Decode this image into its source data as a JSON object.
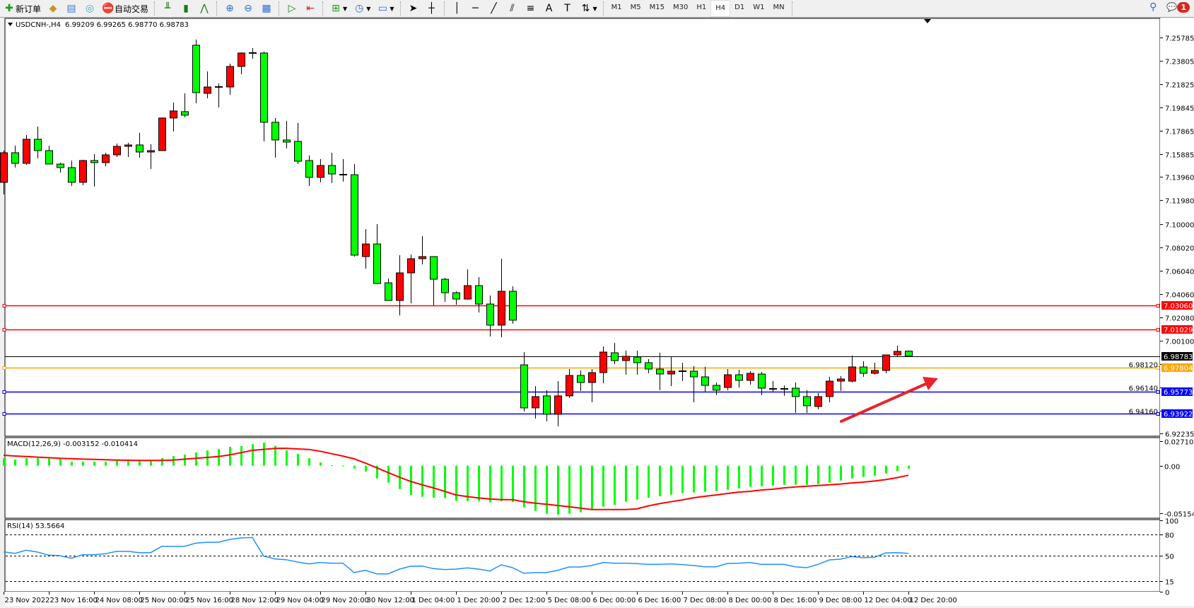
{
  "toolbar": {
    "new_order": "新订单",
    "auto_trading": "自动交易",
    "timeframes": [
      "M1",
      "M5",
      "M15",
      "M30",
      "H1",
      "H4",
      "D1",
      "W1",
      "MN"
    ],
    "active_timeframe": "H4",
    "notification_count": "1",
    "icons": [
      "new-order-icon",
      "market-watch-icon",
      "data-window-icon",
      "navigator-icon",
      "auto-trading-icon",
      "bar-chart-icon",
      "candlestick-icon",
      "line-chart-icon",
      "zoom-in-icon",
      "zoom-out-icon",
      "tile-windows-icon",
      "autoscroll-icon",
      "chart-shift-icon",
      "new-chart-icon",
      "periods-icon",
      "templates-icon",
      "cursor-icon",
      "crosshair-icon",
      "vertical-line-icon",
      "horizontal-line-icon",
      "trendline-icon",
      "equidistant-channel-icon",
      "fibonacci-icon",
      "text-icon",
      "text-label-icon",
      "arrows-icon",
      "search-icon",
      "chat-icon"
    ]
  },
  "chart": {
    "symbol_header": "USDCNH-,H4",
    "ohlc_header": "6.99209 6.99265 6.98770 6.98783",
    "colors": {
      "bull": "#ff0000",
      "bear": "#00ff00",
      "background": "#ffffff",
      "wick": "#000000"
    },
    "price_ticks": [
      "7.25785",
      "7.23805",
      "7.21825",
      "7.19845",
      "7.17865",
      "7.15885",
      "7.13960",
      "7.11980",
      "7.10000",
      "7.08020",
      "7.06040",
      "7.04060",
      "7.02080",
      "7.00100",
      "6.98120",
      "6.96140",
      "6.94160",
      "6.92235"
    ],
    "price_range": [
      6.92235,
      7.25785
    ],
    "hlines": [
      {
        "price": "7.03060",
        "color": "#ff0000",
        "text_color": "#ffffff"
      },
      {
        "price": "7.01029",
        "color": "#ff0000",
        "text_color": "#ffffff"
      },
      {
        "price": "6.98783",
        "color": "#000000",
        "text_color": "#ffffff",
        "current": true
      },
      {
        "price": "6.97804",
        "color": "#ffa500",
        "text_color": "#ffffff"
      },
      {
        "price": "6.95773",
        "color": "#0000ff",
        "text_color": "#ffffff"
      },
      {
        "price": "6.93922",
        "color": "#0000ff",
        "text_color": "#ffffff"
      }
    ],
    "candles": [
      [
        7.1351,
        7.162,
        7.1249,
        7.1602
      ],
      [
        7.1602,
        7.1662,
        7.1476,
        7.1512
      ],
      [
        7.1512,
        7.1752,
        7.15,
        7.1716
      ],
      [
        7.1716,
        7.1824,
        7.1554,
        7.162
      ],
      [
        7.162,
        7.1662,
        7.1506,
        7.1506
      ],
      [
        7.1506,
        7.1518,
        7.1434,
        7.1476
      ],
      [
        7.1476,
        7.1536,
        7.1321,
        7.1351
      ],
      [
        7.1351,
        7.1542,
        7.1327,
        7.1536
      ],
      [
        7.1536,
        7.159,
        7.1315,
        7.1518
      ],
      [
        7.1518,
        7.1602,
        7.1488,
        7.1584
      ],
      [
        7.1584,
        7.168,
        7.1566,
        7.1656
      ],
      [
        7.1656,
        7.1686,
        7.1566,
        7.1668
      ],
      [
        7.1668,
        7.177,
        7.156,
        7.1608
      ],
      [
        7.1608,
        7.1674,
        7.1464,
        7.162
      ],
      [
        7.162,
        7.1902,
        7.162,
        7.1896
      ],
      [
        7.1896,
        7.2027,
        7.1782,
        7.1956
      ],
      [
        7.195,
        7.2105,
        7.1902,
        7.192
      ],
      [
        7.2513,
        7.2561,
        7.2021,
        7.2111
      ],
      [
        7.2105,
        7.2291,
        7.2063,
        7.2159
      ],
      [
        7.2159,
        7.2189,
        7.1986,
        7.2159
      ],
      [
        7.2159,
        7.2357,
        7.2093,
        7.2333
      ],
      [
        7.2333,
        7.2453,
        7.2267,
        7.2447
      ],
      [
        7.2447,
        7.2489,
        7.2399,
        7.2447
      ],
      [
        7.2447,
        7.2459,
        7.1698,
        7.186
      ],
      [
        7.186,
        7.1896,
        7.156,
        7.171
      ],
      [
        7.171,
        7.1872,
        7.1638,
        7.1692
      ],
      [
        7.1698,
        7.1854,
        7.1506,
        7.153
      ],
      [
        7.1536,
        7.1578,
        7.1321,
        7.1393
      ],
      [
        7.1393,
        7.1548,
        7.1351,
        7.1494
      ],
      [
        7.1494,
        7.1602,
        7.1345,
        7.1422
      ],
      [
        7.1416,
        7.1548,
        7.1357,
        7.1416
      ],
      [
        7.1416,
        7.1506,
        7.0722,
        7.0734
      ],
      [
        7.0722,
        7.0955,
        7.062,
        7.0829
      ],
      [
        7.0829,
        7.0997,
        7.0488,
        7.0494
      ],
      [
        7.05,
        7.0536,
        7.035,
        7.035
      ],
      [
        7.035,
        7.0734,
        7.0224,
        7.0584
      ],
      [
        7.0584,
        7.074,
        7.0326,
        7.0704
      ],
      [
        7.0704,
        7.0895,
        7.0656,
        7.0722
      ],
      [
        7.0722,
        7.0722,
        7.0308,
        7.053
      ],
      [
        7.053,
        7.0542,
        7.0338,
        7.0416
      ],
      [
        7.0416,
        7.0428,
        7.0314,
        7.0362
      ],
      [
        7.0362,
        7.0614,
        7.0356,
        7.0476
      ],
      [
        7.0476,
        7.0548,
        7.0248,
        7.032
      ],
      [
        7.032,
        7.0392,
        7.0045,
        7.0141
      ],
      [
        7.0141,
        7.0704,
        7.0039,
        7.0428
      ],
      [
        7.0428,
        7.047,
        7.0153,
        7.0183
      ],
      [
        6.9805,
        6.9913,
        6.941,
        6.944
      ],
      [
        6.944,
        6.9625,
        6.935,
        6.9536
      ],
      [
        6.9542,
        6.959,
        6.9326,
        6.9386
      ],
      [
        6.9386,
        6.9667,
        6.9284,
        6.9542
      ],
      [
        6.9542,
        6.9769,
        6.9524,
        6.9715
      ],
      [
        6.9715,
        6.9757,
        6.9584,
        6.9655
      ],
      [
        6.9655,
        6.9769,
        6.9488,
        6.9739
      ],
      [
        6.9739,
        6.9961,
        6.9649,
        6.9913
      ],
      [
        6.9907,
        6.9991,
        6.9811,
        6.9841
      ],
      [
        6.9841,
        6.9925,
        6.9721,
        6.9877
      ],
      [
        6.9871,
        6.9925,
        6.9721,
        6.9823
      ],
      [
        6.9823,
        6.9853,
        6.9733,
        6.9769
      ],
      [
        6.9769,
        6.9907,
        6.959,
        6.9727
      ],
      [
        6.9727,
        6.9877,
        6.9625,
        6.9751
      ],
      [
        6.9751,
        6.9823,
        6.9667,
        6.9751
      ],
      [
        6.9751,
        6.9793,
        6.9488,
        6.9703
      ],
      [
        6.9703,
        6.9787,
        6.9578,
        6.9631
      ],
      [
        6.9631,
        6.9655,
        6.9548,
        6.959
      ],
      [
        6.9613,
        6.9769,
        6.959,
        6.9721
      ],
      [
        6.9721,
        6.9763,
        6.9613,
        6.9673
      ],
      [
        6.9673,
        6.9751,
        6.9637,
        6.9733
      ],
      [
        6.9727,
        6.9745,
        6.9548,
        6.9607
      ],
      [
        6.9601,
        6.9667,
        6.9578,
        6.9601
      ],
      [
        6.9601,
        6.9631,
        6.9542,
        6.9601
      ],
      [
        6.9607,
        6.9655,
        6.9398,
        6.9536
      ],
      [
        6.9536,
        6.959,
        6.9398,
        6.9458
      ],
      [
        6.9452,
        6.9566,
        6.9428,
        6.9536
      ],
      [
        6.9536,
        6.9703,
        6.9488,
        6.9667
      ],
      [
        6.9667,
        6.9709,
        6.9584,
        6.9685
      ],
      [
        6.9667,
        6.9883,
        6.9655,
        6.9787
      ],
      [
        6.9787,
        6.9835,
        6.9703,
        6.9733
      ],
      [
        6.9733,
        6.9823,
        6.9721,
        6.9757
      ],
      [
        6.9757,
        6.9889,
        6.9733,
        6.9889
      ],
      [
        6.9889,
        6.9967,
        6.9877,
        6.9919
      ],
      [
        6.99209,
        6.99265,
        6.9877,
        6.98783
      ]
    ],
    "time_labels": [
      {
        "bar": 0,
        "text": "23 Nov 2022"
      },
      {
        "bar": 4,
        "text": "23 Nov 16:00"
      },
      {
        "bar": 8,
        "text": "24 Nov 08:00"
      },
      {
        "bar": 12,
        "text": "25 Nov 00:00"
      },
      {
        "bar": 16,
        "text": "25 Nov 16:00"
      },
      {
        "bar": 20,
        "text": "28 Nov 12:00"
      },
      {
        "bar": 24,
        "text": "29 Nov 04:00"
      },
      {
        "bar": 28,
        "text": "29 Nov 20:00"
      },
      {
        "bar": 32,
        "text": "30 Nov 12:00"
      },
      {
        "bar": 36,
        "text": "1 Dec 04:00"
      },
      {
        "bar": 40,
        "text": "1 Dec 20:00"
      },
      {
        "bar": 44,
        "text": "2 Dec 12:00"
      },
      {
        "bar": 48,
        "text": "5 Dec 08:00"
      },
      {
        "bar": 52,
        "text": "6 Dec 00:00"
      },
      {
        "bar": 56,
        "text": "6 Dec 16:00"
      },
      {
        "bar": 60,
        "text": "7 Dec 08:00"
      },
      {
        "bar": 64,
        "text": "8 Dec 00:00"
      },
      {
        "bar": 68,
        "text": "8 Dec 16:00"
      },
      {
        "bar": 72,
        "text": "9 Dec 08:00"
      },
      {
        "bar": 76,
        "text": "12 Dec 04:00"
      },
      {
        "bar": 80,
        "text": "12 Dec 20:00"
      }
    ]
  },
  "macd": {
    "label": "MACD(12,26,9) -0.003152 -0.010414",
    "axis_ticks": [
      "0.027103",
      "0.00",
      "-0.051546"
    ],
    "range": [
      -0.051546,
      0.027103
    ],
    "hist_color": "#00ff00",
    "signal_color": "#ff0000",
    "hist": [
      0.008,
      0.0067,
      0.0082,
      0.0082,
      0.0077,
      0.0072,
      0.0044,
      0.0044,
      0.0044,
      0.0044,
      0.0054,
      0.0054,
      0.0049,
      0.0049,
      0.0082,
      0.0105,
      0.0121,
      0.0144,
      0.0167,
      0.0182,
      0.0206,
      0.0213,
      0.0234,
      0.0252,
      0.0216,
      0.0167,
      0.0129,
      0.0082,
      0.0036,
      0.0005,
      -0.0003,
      -0.0031,
      -0.0064,
      -0.0139,
      -0.0185,
      -0.0254,
      -0.0319,
      -0.0339,
      -0.035,
      -0.0352,
      -0.0383,
      -0.0386,
      -0.0386,
      -0.0401,
      -0.0386,
      -0.0396,
      -0.0455,
      -0.0493,
      -0.0524,
      -0.0535,
      -0.0524,
      -0.0509,
      -0.0483,
      -0.0447,
      -0.0427,
      -0.0393,
      -0.037,
      -0.035,
      -0.0332,
      -0.0316,
      -0.0301,
      -0.0293,
      -0.0285,
      -0.0278,
      -0.0262,
      -0.0247,
      -0.0231,
      -0.0224,
      -0.0216,
      -0.0208,
      -0.0208,
      -0.0208,
      -0.02,
      -0.0185,
      -0.0162,
      -0.0139,
      -0.0123,
      -0.0108,
      -0.0085,
      -0.0062,
      -0.003152
    ],
    "signal": [
      0.0113,
      0.0106,
      0.01,
      0.0093,
      0.0087,
      0.008,
      0.0076,
      0.0072,
      0.0069,
      0.0065,
      0.0062,
      0.0059,
      0.0058,
      0.0057,
      0.0057,
      0.0062,
      0.0071,
      0.008,
      0.009,
      0.01,
      0.0118,
      0.0142,
      0.0167,
      0.0178,
      0.0188,
      0.019,
      0.0183,
      0.0177,
      0.0157,
      0.0131,
      0.0105,
      0.0075,
      0.0028,
      -0.0023,
      -0.0075,
      -0.0126,
      -0.0172,
      -0.0208,
      -0.0242,
      -0.028,
      -0.0319,
      -0.0337,
      -0.0352,
      -0.0362,
      -0.037,
      -0.037,
      -0.0393,
      -0.0409,
      -0.0421,
      -0.0434,
      -0.0447,
      -0.0463,
      -0.0478,
      -0.0478,
      -0.0478,
      -0.0478,
      -0.047,
      -0.0439,
      -0.0414,
      -0.0393,
      -0.0373,
      -0.035,
      -0.0334,
      -0.0319,
      -0.0303,
      -0.0288,
      -0.028,
      -0.0265,
      -0.0257,
      -0.0242,
      -0.0231,
      -0.0224,
      -0.0216,
      -0.0208,
      -0.02,
      -0.0188,
      -0.018,
      -0.0167,
      -0.0152,
      -0.013,
      -0.010414
    ]
  },
  "rsi": {
    "label": "RSI(14) 53.5664",
    "axis_ticks": [
      "100",
      "80",
      "50",
      "15",
      "0"
    ],
    "levels": [
      80,
      50,
      15
    ],
    "color": "#1e90ff",
    "values": [
      55.6,
      53.6,
      57.9,
      55.3,
      51.0,
      50.3,
      46.7,
      51.7,
      51.7,
      53.0,
      56.3,
      56.3,
      54.6,
      54.6,
      63.5,
      63.5,
      63.5,
      67.8,
      69.1,
      69.1,
      73.1,
      75.1,
      75.7,
      49.7,
      45.7,
      44.7,
      41.4,
      38.8,
      40.8,
      39.8,
      39.8,
      26.6,
      29.9,
      24.9,
      24.9,
      31.5,
      35.5,
      35.8,
      32.2,
      30.9,
      31.5,
      33.2,
      31.5,
      28.9,
      37.5,
      33.5,
      25.6,
      26.6,
      26.6,
      29.9,
      34.5,
      34.5,
      36.5,
      40.8,
      39.8,
      39.8,
      39.1,
      38.1,
      38.1,
      38.8,
      37.8,
      36.5,
      34.8,
      34.8,
      39.4,
      39.8,
      40.8,
      38.1,
      38.1,
      38.1,
      34.8,
      33.5,
      38.1,
      44.4,
      45.4,
      49.0,
      47.4,
      48.0,
      54.3,
      54.6,
      53.5664
    ]
  }
}
